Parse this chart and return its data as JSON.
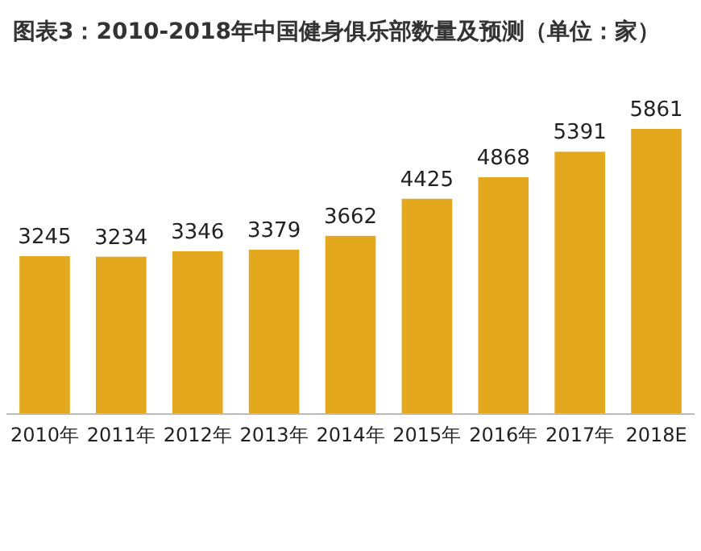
{
  "chart_data": {
    "type": "bar",
    "title": "图表3：2010-2018年中国健身俱乐部数量及预测（单位：家）",
    "categories": [
      "2010年",
      "2011年",
      "2012年",
      "2013年",
      "2014年",
      "2015年",
      "2016年",
      "2017年",
      "2018E"
    ],
    "values": [
      3245,
      3234,
      3346,
      3379,
      3662,
      4425,
      4868,
      5391,
      5861
    ],
    "color": "#e3a81e",
    "data_labels": true
  }
}
